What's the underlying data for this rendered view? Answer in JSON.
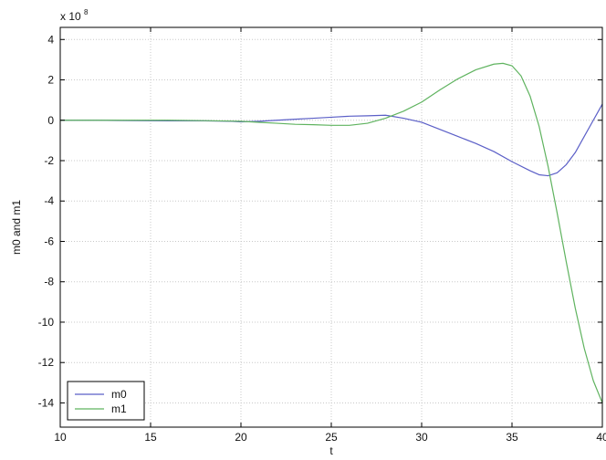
{
  "chart_data": {
    "type": "line",
    "title": "",
    "xlabel": "t",
    "ylabel": "m0 and m1",
    "y_multiplier_label": "x 10",
    "y_multiplier_exponent": "8",
    "xlim": [
      10,
      40
    ],
    "ylim": [
      -15.2,
      4.6
    ],
    "xticks": [
      10,
      15,
      20,
      25,
      30,
      35,
      40
    ],
    "yticks": [
      4,
      2,
      0,
      -2,
      -4,
      -6,
      -8,
      -10,
      -12,
      -14
    ],
    "grid": true,
    "legend_position": "bottom-left",
    "colors": {
      "m0": "#5b5fc7",
      "m1": "#5fb35f",
      "grid": "#c8c8c8",
      "axis": "#000000"
    },
    "series": [
      {
        "name": "m0",
        "color": "#5b5fc7",
        "x": [
          10,
          12,
          14,
          16,
          18,
          19.5,
          20,
          21,
          22,
          23,
          24,
          25,
          26,
          27,
          28,
          29,
          30,
          31,
          32,
          33,
          34,
          35,
          36,
          36.5,
          37,
          37.5,
          38,
          38.5,
          39,
          39.5,
          40
        ],
        "y": [
          0,
          0,
          -0.02,
          -0.03,
          -0.03,
          -0.05,
          -0.08,
          -0.05,
          0,
          0.05,
          0.1,
          0.15,
          0.2,
          0.22,
          0.25,
          0.1,
          -0.1,
          -0.45,
          -0.8,
          -1.15,
          -1.55,
          -2.05,
          -2.5,
          -2.7,
          -2.75,
          -2.6,
          -2.2,
          -1.6,
          -0.8,
          0,
          0.8
        ]
      },
      {
        "name": "m1",
        "color": "#5fb35f",
        "x": [
          10,
          12,
          14,
          16,
          18,
          20,
          21,
          22,
          23,
          24,
          25,
          26,
          27,
          28,
          29,
          30,
          31,
          32,
          33,
          34,
          34.5,
          35,
          35.5,
          36,
          36.5,
          37,
          37.5,
          38,
          38.5,
          39,
          39.5,
          40
        ],
        "y": [
          0,
          0,
          0,
          0,
          -0.02,
          -0.05,
          -0.1,
          -0.15,
          -0.2,
          -0.22,
          -0.25,
          -0.25,
          -0.15,
          0.1,
          0.45,
          0.9,
          1.5,
          2.05,
          2.5,
          2.78,
          2.82,
          2.7,
          2.2,
          1.2,
          -0.3,
          -2.3,
          -4.6,
          -7.0,
          -9.3,
          -11.3,
          -12.9,
          -14.0
        ]
      }
    ]
  }
}
